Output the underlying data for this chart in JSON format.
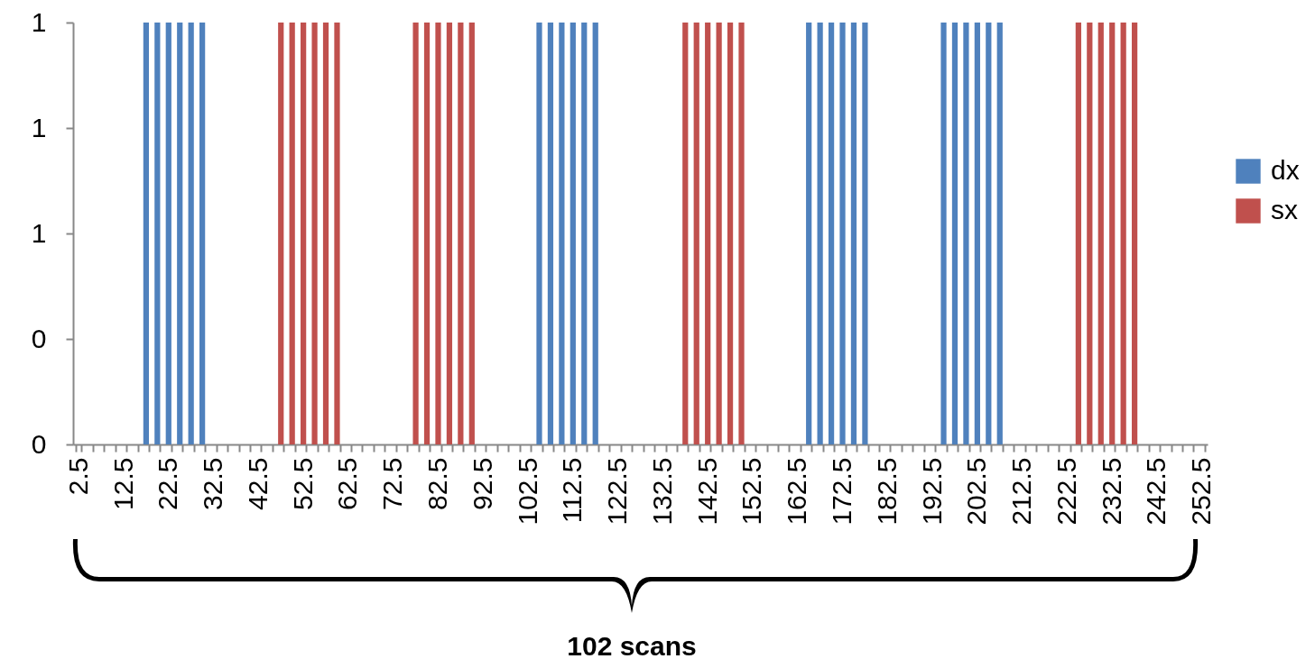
{
  "chart_data": {
    "type": "bar",
    "categories": [
      "2.5",
      null,
      null,
      null,
      "12.5",
      null,
      null,
      null,
      "22.5",
      null,
      null,
      null,
      "32.5",
      null,
      null,
      null,
      "42.5",
      null,
      null,
      null,
      "52.5",
      null,
      null,
      null,
      "62.5",
      null,
      null,
      null,
      "72.5",
      null,
      null,
      null,
      "82.5",
      null,
      null,
      null,
      "92.5",
      null,
      null,
      null,
      "102.5",
      null,
      null,
      null,
      "112.5",
      null,
      null,
      null,
      "122.5",
      null,
      null,
      null,
      "132.5",
      null,
      null,
      null,
      "142.5",
      null,
      null,
      null,
      "152.5",
      null,
      null,
      null,
      "162.5",
      null,
      null,
      null,
      "172.5",
      null,
      null,
      null,
      "182.5",
      null,
      null,
      null,
      "192.5",
      null,
      null,
      null,
      "202.5",
      null,
      null,
      null,
      "212.5",
      null,
      null,
      null,
      "222.5",
      null,
      null,
      null,
      "232.5",
      null,
      null,
      null,
      "242.5",
      null,
      null,
      null,
      "252.5"
    ],
    "series": [
      {
        "name": "dx",
        "color": "#4f81bd",
        "values": [
          null,
          null,
          null,
          null,
          null,
          null,
          1,
          1,
          1,
          1,
          1,
          1,
          null,
          null,
          null,
          null,
          null,
          null,
          null,
          null,
          null,
          null,
          null,
          null,
          null,
          null,
          null,
          null,
          null,
          null,
          null,
          null,
          null,
          null,
          null,
          null,
          null,
          null,
          null,
          null,
          null,
          1,
          1,
          1,
          1,
          1,
          1,
          null,
          null,
          null,
          null,
          null,
          null,
          null,
          null,
          null,
          null,
          null,
          null,
          null,
          null,
          null,
          null,
          null,
          null,
          1,
          1,
          1,
          1,
          1,
          1,
          null,
          null,
          null,
          null,
          null,
          null,
          1,
          1,
          1,
          1,
          1,
          1,
          null,
          null,
          null,
          null,
          null,
          null,
          null,
          null,
          null,
          null,
          null,
          null,
          null,
          null,
          null,
          null,
          null,
          null
        ]
      },
      {
        "name": "sx",
        "color": "#c0504d",
        "values": [
          null,
          null,
          null,
          null,
          null,
          null,
          null,
          null,
          null,
          null,
          null,
          null,
          null,
          null,
          null,
          null,
          null,
          null,
          1,
          1,
          1,
          1,
          1,
          1,
          null,
          null,
          null,
          null,
          null,
          null,
          1,
          1,
          1,
          1,
          1,
          1,
          null,
          null,
          null,
          null,
          null,
          null,
          null,
          null,
          null,
          null,
          null,
          null,
          null,
          null,
          null,
          null,
          null,
          null,
          1,
          1,
          1,
          1,
          1,
          1,
          null,
          null,
          null,
          null,
          null,
          null,
          null,
          null,
          null,
          null,
          null,
          null,
          null,
          null,
          null,
          null,
          null,
          null,
          null,
          null,
          null,
          null,
          null,
          null,
          null,
          null,
          null,
          null,
          null,
          1,
          1,
          1,
          1,
          1,
          1,
          null,
          null,
          null,
          null,
          null,
          null
        ]
      }
    ],
    "ylim": [
      0,
      1
    ],
    "yticks": [
      {
        "value": 0,
        "label": "0"
      },
      {
        "value": 0.25,
        "label": "0"
      },
      {
        "value": 0.5,
        "label": "1"
      },
      {
        "value": 0.75,
        "label": "1"
      },
      {
        "value": 1,
        "label": "1"
      }
    ],
    "grid": false,
    "legend": "right",
    "annotations": [
      "102 scans"
    ]
  }
}
